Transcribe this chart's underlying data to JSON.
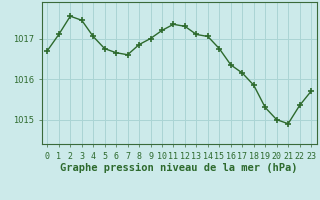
{
  "x": [
    0,
    1,
    2,
    3,
    4,
    5,
    6,
    7,
    8,
    9,
    10,
    11,
    12,
    13,
    14,
    15,
    16,
    17,
    18,
    19,
    20,
    21,
    22,
    23
  ],
  "y": [
    1016.7,
    1017.1,
    1017.55,
    1017.45,
    1017.05,
    1016.75,
    1016.65,
    1016.6,
    1016.85,
    1017.0,
    1017.2,
    1017.35,
    1017.3,
    1017.1,
    1017.05,
    1016.75,
    1016.35,
    1016.15,
    1015.85,
    1015.3,
    1015.0,
    1014.9,
    1015.35,
    1015.7
  ],
  "line_color": "#2d6a2d",
  "marker": "+",
  "marker_size": 5,
  "marker_lw": 1.2,
  "bg_color": "#cceaea",
  "grid_color": "#aad4d4",
  "title": "Graphe pression niveau de la mer (hPa)",
  "xlabel_ticks": [
    "0",
    "1",
    "2",
    "3",
    "4",
    "5",
    "6",
    "7",
    "8",
    "9",
    "10",
    "11",
    "12",
    "13",
    "14",
    "15",
    "16",
    "17",
    "18",
    "19",
    "20",
    "21",
    "22",
    "23"
  ],
  "yticks": [
    1015,
    1016,
    1017
  ],
  "ylim": [
    1014.4,
    1017.9
  ],
  "xlim": [
    -0.5,
    23.5
  ],
  "title_fontsize": 7.5,
  "tick_fontsize": 6.0,
  "line_width": 1.0
}
